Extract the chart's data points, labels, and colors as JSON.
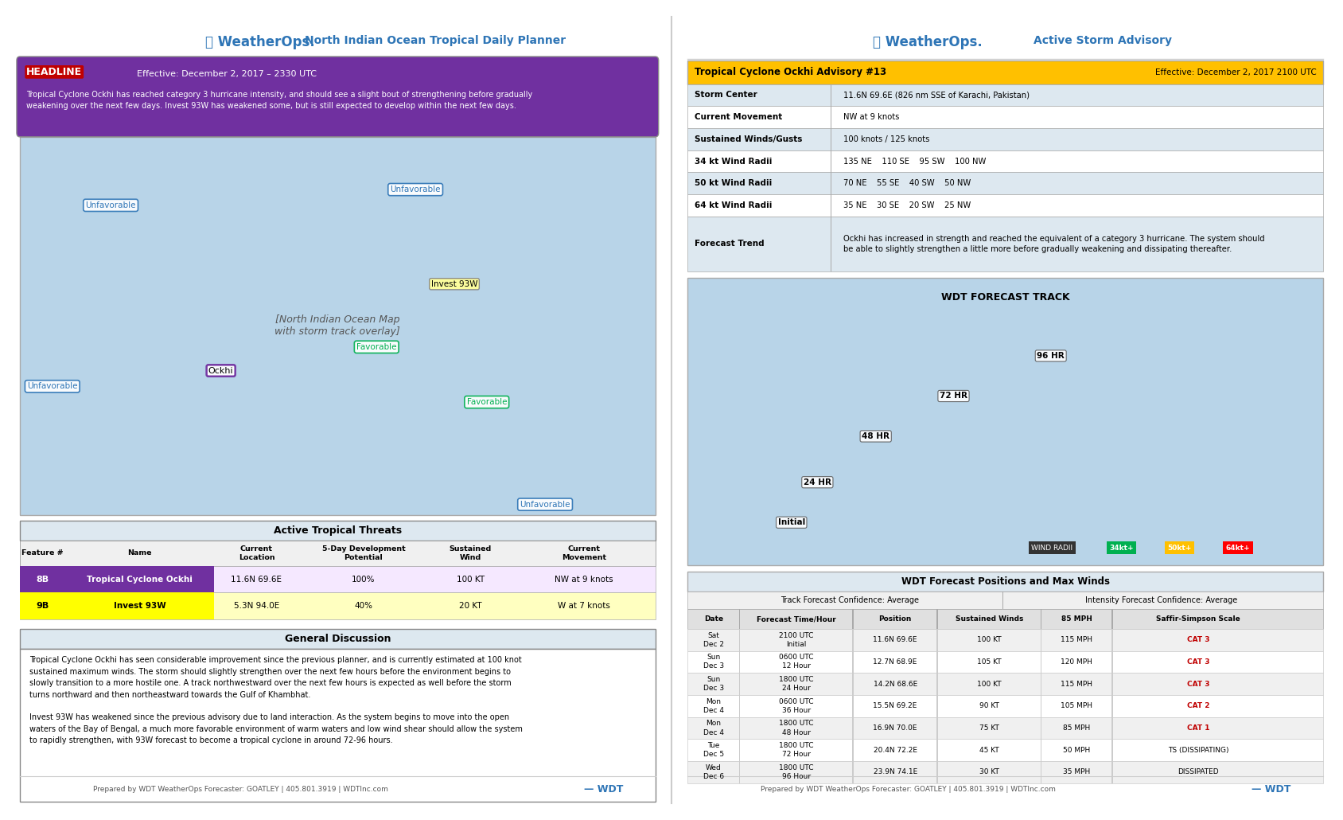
{
  "title_left": "North Indian Ocean Tropical Daily Planner",
  "title_right": "Active Storm Advisory",
  "weatherops_color": "#2e75b6",
  "weatherops_red": "#c00000",
  "page_bg": "#ffffff",
  "headline_label": "HEADLINE",
  "headline_date": "Effective: December 2, 2017 – 2330 UTC",
  "headline_text": "Tropical Cyclone Ockhi has reached category 3 hurricane intensity, and should see a slight bout of strengthening before gradually\nweakening over the next few days. Invest 93W has weakened some, but is still expected to develop within the next few days.",
  "headline_bg": "#7030a0",
  "active_threats_title": "Active Tropical Threats",
  "threats_headers": [
    "Feature #",
    "Name",
    "Current\nLocation",
    "5-Day Development\nPotential",
    "Sustained\nWind",
    "Current\nMovement"
  ],
  "threats_rows": [
    [
      "8B",
      "Tropical Cyclone Ockhi",
      "11.6N 69.6E",
      "100%",
      "100 KT",
      "NW at 9 knots"
    ],
    [
      "9B",
      "Invest 93W",
      "5.3N 94.0E",
      "40%",
      "20 KT",
      "W at 7 knots"
    ]
  ],
  "row_colors": [
    "#7030a0",
    "#ffff00"
  ],
  "row_text_colors": [
    "#ffffff",
    "#000000"
  ],
  "general_discussion_title": "General Discussion",
  "general_discussion_text": "Tropical Cyclone Ockhi has seen considerable improvement since the previous planner, and is currently estimated at 100 knot\nsustained maximum winds. The storm should slightly strengthen over the next few hours before the environment begins to\nslowly transition to a more hostile one. A track northwestward over the next few hours is expected as well before the storm\nturns northward and then northeastward towards the Gulf of Khambhat.\n\nInvest 93W has weakened since the previous advisory due to land interaction. As the system begins to move into the open\nwaters of the Bay of Bengal, a much more favorable environment of warm waters and low wind shear should allow the system\nto rapidly strengthen, with 93W forecast to become a tropical cyclone in around 72-96 hours.",
  "advisory_title": "Tropical Cyclone Ockhi Advisory #13",
  "advisory_date": "Effective: December 2, 2017 2100 UTC",
  "advisory_rows": [
    [
      "Storm Center",
      "11.6N 69.6E (826 nm SSE of Karachi, Pakistan)"
    ],
    [
      "Current Movement",
      "NW at 9 knots"
    ],
    [
      "Sustained Winds/Gusts",
      "100 knots / 125 knots"
    ],
    [
      "34 kt Wind Radii",
      "135 NE    110 SE    95 SW    100 NW"
    ],
    [
      "50 kt Wind Radii",
      "70 NE    55 SE    40 SW    50 NW"
    ],
    [
      "64 kt Wind Radii",
      "35 NE    30 SE    20 SW    25 NW"
    ],
    [
      "Forecast Trend",
      "Ockhi has increased in strength and reached the equivalent of a category 3 hurricane. The system should\nbe able to slightly strengthen a little more before gradually weakening and dissipating thereafter."
    ]
  ],
  "forecast_track_title": "WDT FORECAST TRACK",
  "wdt_positions_title": "WDT Forecast Positions and Max Winds",
  "track_confidence": "Track Forecast Confidence: Average",
  "intensity_confidence": "Intensity Forecast Confidence: Average",
  "positions_headers": [
    "Date",
    "Forecast Time/Hour",
    "Position",
    "Sustained Winds",
    "85 MPH",
    "Saffir-Simpson Scale"
  ],
  "positions_rows": [
    [
      "Sat",
      "Dec 2",
      "2100 UTC",
      "Initial",
      "11.6N 69.6E",
      "100 KT",
      "115 MPH",
      "CAT 3"
    ],
    [
      "Sun",
      "Dec 3",
      "0600 UTC",
      "12 Hour",
      "12.7N 68.9E",
      "105 KT",
      "120 MPH",
      "CAT 3"
    ],
    [
      "Sun",
      "Dec 3",
      "1800 UTC",
      "24 Hour",
      "14.2N 68.6E",
      "100 KT",
      "115 MPH",
      "CAT 3"
    ],
    [
      "Mon",
      "Dec 4",
      "0600 UTC",
      "36 Hour",
      "15.5N 69.2E",
      "90 KT",
      "105 MPH",
      "CAT 2"
    ],
    [
      "Mon",
      "Dec 4",
      "1800 UTC",
      "48 Hour",
      "16.9N 70.0E",
      "75 KT",
      "85 MPH",
      "CAT 1"
    ],
    [
      "Tue",
      "Dec 5",
      "1800 UTC",
      "72 Hour",
      "20.4N 72.2E",
      "45 KT",
      "50 MPH",
      "TS (DISSIPATING)"
    ],
    [
      "Wed",
      "Dec 6",
      "1800 UTC",
      "96 Hour",
      "23.9N 74.1E",
      "30 KT",
      "35 MPH",
      "DISSIPATED"
    ]
  ],
  "cat_colors": {
    "CAT 3": "#c00000",
    "CAT 2": "#c00000",
    "CAT 1": "#c00000",
    "TS (DISSIPATING)": "#000000",
    "DISSIPATED": "#000000"
  },
  "footer_text": "Prepared by WDT WeatherOps Forecaster: GOATLEY | 405.801.3919 | WDTInc.com",
  "wind_radii_legend": [
    "34kt+",
    "50kt+",
    "64kt+"
  ],
  "wind_radii_colors": [
    "#00b050",
    "#ffc000",
    "#ff0000"
  ]
}
